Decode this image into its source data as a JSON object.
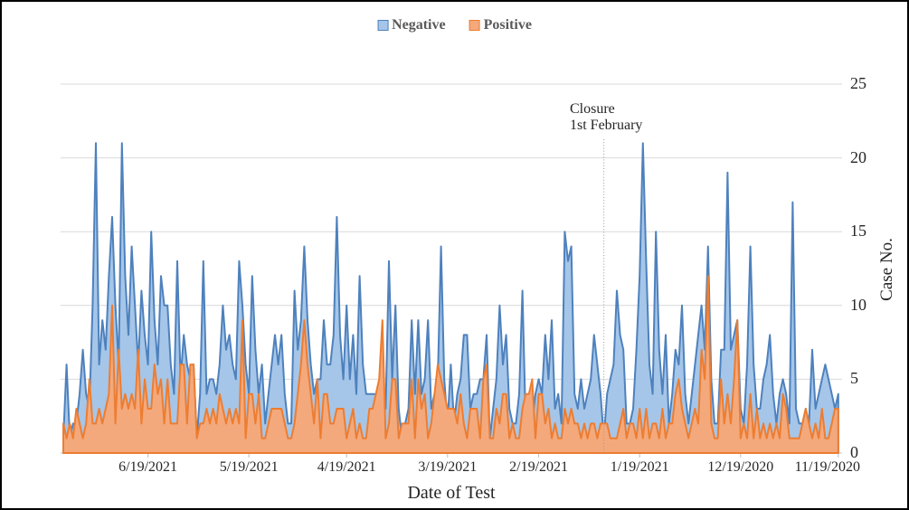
{
  "legend": {
    "items": [
      {
        "label": "Negative",
        "fill": "#A5C6E8",
        "border": "#4E81BD"
      },
      {
        "label": "Positive",
        "fill": "#F4A97C",
        "border": "#ED7D31"
      }
    ]
  },
  "chart_data": {
    "type": "area",
    "xlabel": "Date of Test",
    "ylabel": "Case No.",
    "ylim": [
      0,
      25
    ],
    "y_ticks": [
      0,
      5,
      10,
      15,
      20,
      25
    ],
    "x_tick_labels": [
      "6/19/2021",
      "5/19/2021",
      "4/19/2021",
      "3/19/2021",
      "2/19/2021",
      "1/19/2021",
      "12/19/2020",
      "11/19/2020"
    ],
    "x_tick_positions": [
      26,
      57,
      87,
      118,
      146,
      177,
      208,
      238
    ],
    "n_points": 239,
    "x_axis_reversed_dates": true,
    "annotation": {
      "lines": [
        "Closure",
        "1st February"
      ],
      "x_index": 166
    },
    "grid": true,
    "legend_position": "top",
    "series": [
      {
        "name": "Negative",
        "fill": "#A5C6E8",
        "stroke": "#4E81BD",
        "values": [
          1,
          6,
          1,
          2,
          2,
          4,
          7,
          4,
          3,
          10,
          21,
          6,
          9,
          7,
          12,
          16,
          10,
          6,
          21,
          12,
          8,
          14,
          10,
          6,
          11,
          8,
          6,
          15,
          9,
          6,
          12,
          10,
          10,
          6,
          4,
          13,
          5,
          8,
          6,
          5,
          6,
          1,
          4,
          13,
          4,
          5,
          5,
          4,
          6,
          10,
          7,
          8,
          6,
          5,
          13,
          10,
          6,
          4,
          12,
          7,
          4,
          6,
          2,
          4,
          6,
          8,
          6,
          8,
          4,
          2,
          2,
          11,
          7,
          9,
          14,
          9,
          6,
          4,
          5,
          5,
          9,
          6,
          6,
          8,
          16,
          8,
          5,
          10,
          5,
          8,
          4,
          12,
          6,
          4,
          4,
          4,
          4,
          4,
          5,
          3,
          13,
          5,
          10,
          3,
          1,
          2,
          3,
          9,
          4,
          9,
          4,
          5,
          9,
          3,
          4,
          5,
          14,
          5,
          2,
          6,
          2,
          4,
          5,
          8,
          8,
          3,
          4,
          4,
          5,
          5,
          8,
          1,
          3,
          5,
          10,
          6,
          8,
          3,
          2,
          2,
          4,
          11,
          2,
          2,
          2,
          4,
          5,
          4,
          8,
          5,
          9,
          3,
          4,
          2,
          15,
          13,
          14,
          4,
          3,
          5,
          3,
          4,
          5,
          8,
          6,
          4,
          1,
          4,
          5,
          6,
          11,
          8,
          7,
          2,
          2,
          3,
          7,
          12,
          21,
          13,
          6,
          4,
          15,
          7,
          4,
          8,
          2,
          4,
          7,
          6,
          10,
          4,
          2,
          4,
          6,
          8,
          10,
          7,
          14,
          5,
          2,
          2,
          7,
          7,
          19,
          7,
          8,
          9,
          3,
          2,
          6,
          14,
          6,
          3,
          3,
          5,
          6,
          8,
          4,
          2,
          4,
          5,
          4,
          2,
          17,
          3,
          2,
          2,
          3,
          2,
          7,
          3,
          4,
          5,
          6,
          5,
          4,
          3,
          4
        ]
      },
      {
        "name": "Positive",
        "fill": "#F4A97C",
        "stroke": "#ED7D31",
        "values": [
          2,
          1,
          2,
          1,
          3,
          2,
          1,
          2,
          5,
          2,
          2,
          3,
          2,
          3,
          4,
          10,
          2,
          7,
          3,
          4,
          3,
          4,
          3,
          7,
          2,
          5,
          3,
          3,
          6,
          4,
          5,
          2,
          5,
          2,
          2,
          2,
          6,
          6,
          2,
          6,
          6,
          1,
          2,
          2,
          3,
          2,
          3,
          2,
          4,
          3,
          2,
          3,
          2,
          3,
          2,
          9,
          1,
          4,
          4,
          2,
          4,
          1,
          1,
          2,
          3,
          3,
          3,
          3,
          2,
          1,
          1,
          2,
          4,
          6,
          9,
          6,
          4,
          2,
          5,
          1,
          4,
          4,
          2,
          2,
          3,
          3,
          3,
          1,
          2,
          3,
          1,
          2,
          1,
          1,
          3,
          3,
          4,
          5,
          9,
          1,
          2,
          5,
          5,
          1,
          2,
          2,
          2,
          5,
          1,
          5,
          3,
          4,
          1,
          2,
          4,
          6,
          5,
          4,
          3,
          3,
          3,
          2,
          4,
          2,
          1,
          3,
          3,
          3,
          1,
          5,
          6,
          1,
          1,
          3,
          2,
          4,
          4,
          1,
          2,
          1,
          1,
          3,
          4,
          4,
          5,
          1,
          4,
          4,
          2,
          3,
          1,
          2,
          1,
          1,
          3,
          2,
          3,
          2,
          2,
          1,
          2,
          1,
          2,
          2,
          1,
          2,
          2,
          2,
          1,
          1,
          1,
          2,
          3,
          1,
          2,
          2,
          1,
          3,
          1,
          3,
          1,
          2,
          2,
          1,
          3,
          1,
          2,
          2,
          4,
          5,
          3,
          2,
          1,
          2,
          3,
          2,
          7,
          5,
          12,
          2,
          1,
          1,
          5,
          2,
          4,
          2,
          5,
          9,
          1,
          2,
          1,
          4,
          1,
          3,
          1,
          2,
          1,
          2,
          1,
          2,
          1,
          4,
          3,
          1,
          1,
          1,
          1,
          2,
          3,
          2,
          1,
          2,
          1,
          3,
          1,
          1,
          2,
          3,
          3
        ]
      }
    ]
  }
}
